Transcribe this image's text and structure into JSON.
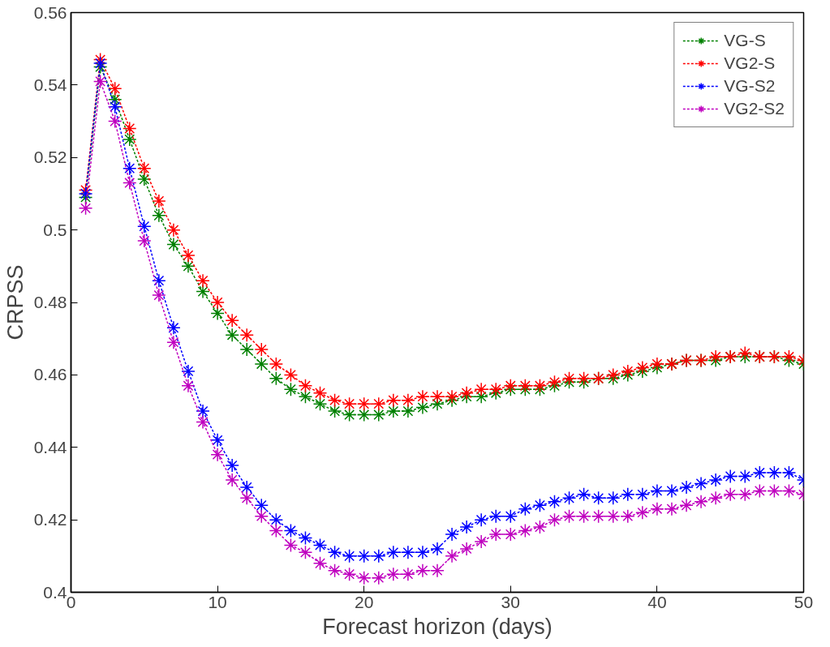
{
  "chart_data": {
    "type": "line",
    "xlabel": "Forecast horizon (days)",
    "ylabel": "CRPSS",
    "x": [
      1,
      2,
      3,
      4,
      5,
      6,
      7,
      8,
      9,
      10,
      11,
      12,
      13,
      14,
      15,
      16,
      17,
      18,
      19,
      20,
      21,
      22,
      23,
      24,
      25,
      26,
      27,
      28,
      29,
      30,
      31,
      32,
      33,
      34,
      35,
      36,
      37,
      38,
      39,
      40,
      41,
      42,
      43,
      44,
      45,
      46,
      47,
      48,
      49,
      50
    ],
    "series": [
      {
        "name": "VG-S",
        "color": "#008000",
        "values": [
          0.509,
          0.545,
          0.536,
          0.525,
          0.514,
          0.504,
          0.496,
          0.49,
          0.483,
          0.477,
          0.471,
          0.467,
          0.463,
          0.459,
          0.456,
          0.454,
          0.452,
          0.45,
          0.449,
          0.449,
          0.449,
          0.45,
          0.45,
          0.451,
          0.452,
          0.453,
          0.454,
          0.454,
          0.455,
          0.456,
          0.456,
          0.456,
          0.457,
          0.458,
          0.458,
          0.459,
          0.459,
          0.46,
          0.461,
          0.462,
          0.463,
          0.464,
          0.464,
          0.464,
          0.465,
          0.465,
          0.465,
          0.465,
          0.464,
          0.463
        ]
      },
      {
        "name": "VG2-S",
        "color": "#ff0000",
        "values": [
          0.511,
          0.547,
          0.539,
          0.528,
          0.517,
          0.508,
          0.5,
          0.493,
          0.486,
          0.48,
          0.475,
          0.471,
          0.467,
          0.463,
          0.46,
          0.457,
          0.455,
          0.453,
          0.452,
          0.452,
          0.452,
          0.453,
          0.453,
          0.454,
          0.454,
          0.454,
          0.455,
          0.456,
          0.456,
          0.457,
          0.457,
          0.457,
          0.458,
          0.459,
          0.459,
          0.459,
          0.46,
          0.461,
          0.462,
          0.463,
          0.463,
          0.464,
          0.464,
          0.465,
          0.465,
          0.466,
          0.465,
          0.465,
          0.465,
          0.464
        ]
      },
      {
        "name": "VG-S2",
        "color": "#0000ff",
        "values": [
          0.51,
          0.546,
          0.534,
          0.517,
          0.501,
          0.486,
          0.473,
          0.461,
          0.45,
          0.442,
          0.435,
          0.429,
          0.424,
          0.42,
          0.417,
          0.415,
          0.413,
          0.411,
          0.41,
          0.41,
          0.41,
          0.411,
          0.411,
          0.411,
          0.412,
          0.416,
          0.418,
          0.42,
          0.421,
          0.421,
          0.423,
          0.424,
          0.425,
          0.426,
          0.427,
          0.426,
          0.426,
          0.427,
          0.427,
          0.428,
          0.428,
          0.429,
          0.43,
          0.431,
          0.432,
          0.432,
          0.433,
          0.433,
          0.433,
          0.431
        ]
      },
      {
        "name": "VG2-S2",
        "color": "#bf00bf",
        "values": [
          0.506,
          0.541,
          0.53,
          0.513,
          0.497,
          0.482,
          0.469,
          0.457,
          0.447,
          0.438,
          0.431,
          0.426,
          0.421,
          0.417,
          0.413,
          0.411,
          0.408,
          0.406,
          0.405,
          0.404,
          0.404,
          0.405,
          0.405,
          0.406,
          0.406,
          0.41,
          0.412,
          0.414,
          0.416,
          0.416,
          0.417,
          0.418,
          0.42,
          0.421,
          0.421,
          0.421,
          0.421,
          0.421,
          0.422,
          0.423,
          0.423,
          0.424,
          0.425,
          0.426,
          0.427,
          0.427,
          0.428,
          0.428,
          0.428,
          0.427
        ]
      }
    ],
    "xlim": [
      0,
      50
    ],
    "xticks": [
      0,
      10,
      20,
      30,
      40,
      50
    ],
    "ylim": [
      0.4,
      0.56
    ],
    "yticks": [
      0.4,
      0.42,
      0.44,
      0.46,
      0.48,
      0.5,
      0.52,
      0.54,
      0.56
    ],
    "grid": false,
    "legend": "top right",
    "marker": "cross",
    "line_style": "dashed"
  }
}
